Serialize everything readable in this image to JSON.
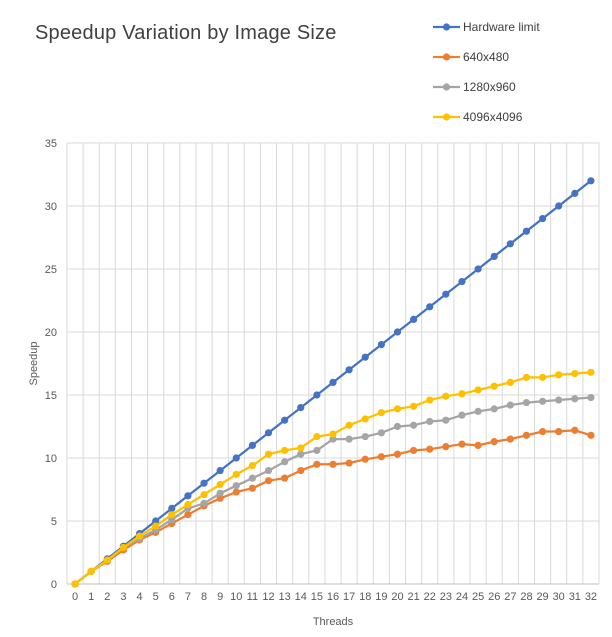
{
  "chart_data": {
    "type": "line",
    "title": "Speedup Variation by Image Size",
    "xlabel": "Threads",
    "ylabel": "Speedup",
    "ylim": [
      0,
      35
    ],
    "yticks": [
      0,
      5,
      10,
      15,
      20,
      25,
      30,
      35
    ],
    "x": [
      0,
      1,
      2,
      3,
      4,
      5,
      6,
      7,
      8,
      9,
      10,
      11,
      12,
      13,
      14,
      15,
      16,
      17,
      18,
      19,
      20,
      21,
      22,
      23,
      24,
      25,
      26,
      27,
      28,
      29,
      30,
      31,
      32
    ],
    "grid": true,
    "legend_position": "top-right",
    "series": [
      {
        "name": "Hardware limit",
        "color": "#4472C4",
        "values": [
          0,
          1,
          2,
          3,
          4,
          5,
          6,
          7,
          8,
          9,
          10,
          11,
          12,
          13,
          14,
          15,
          16,
          17,
          18,
          19,
          20,
          21,
          22,
          23,
          24,
          25,
          26,
          27,
          28,
          29,
          30,
          31,
          32
        ]
      },
      {
        "name": "640x480",
        "color": "#ED7D31",
        "values": [
          0,
          1.0,
          1.8,
          2.7,
          3.5,
          4.1,
          4.8,
          5.5,
          6.2,
          6.8,
          7.3,
          7.6,
          8.2,
          8.4,
          9.0,
          9.5,
          9.5,
          9.6,
          9.9,
          10.1,
          10.3,
          10.6,
          10.7,
          10.9,
          11.1,
          11.0,
          11.3,
          11.5,
          11.8,
          12.1,
          12.1,
          12.2,
          11.8
        ]
      },
      {
        "name": "1280x960",
        "color": "#A5A5A5",
        "values": [
          0,
          1.0,
          1.9,
          2.9,
          3.6,
          4.3,
          5.1,
          6.0,
          6.4,
          7.2,
          7.8,
          8.4,
          9.0,
          9.7,
          10.3,
          10.6,
          11.5,
          11.5,
          11.7,
          12.0,
          12.5,
          12.6,
          12.9,
          13.0,
          13.4,
          13.7,
          13.9,
          14.2,
          14.4,
          14.5,
          14.6,
          14.7,
          14.8
        ]
      },
      {
        "name": "4096x4096",
        "color": "#FFC000",
        "values": [
          0,
          1.0,
          1.9,
          2.9,
          3.8,
          4.6,
          5.5,
          6.3,
          7.1,
          7.9,
          8.7,
          9.4,
          10.3,
          10.6,
          10.8,
          11.7,
          11.9,
          12.6,
          13.1,
          13.6,
          13.9,
          14.1,
          14.6,
          14.9,
          15.1,
          15.4,
          15.7,
          16.0,
          16.4,
          16.4,
          16.6,
          16.7,
          16.8
        ]
      }
    ]
  }
}
